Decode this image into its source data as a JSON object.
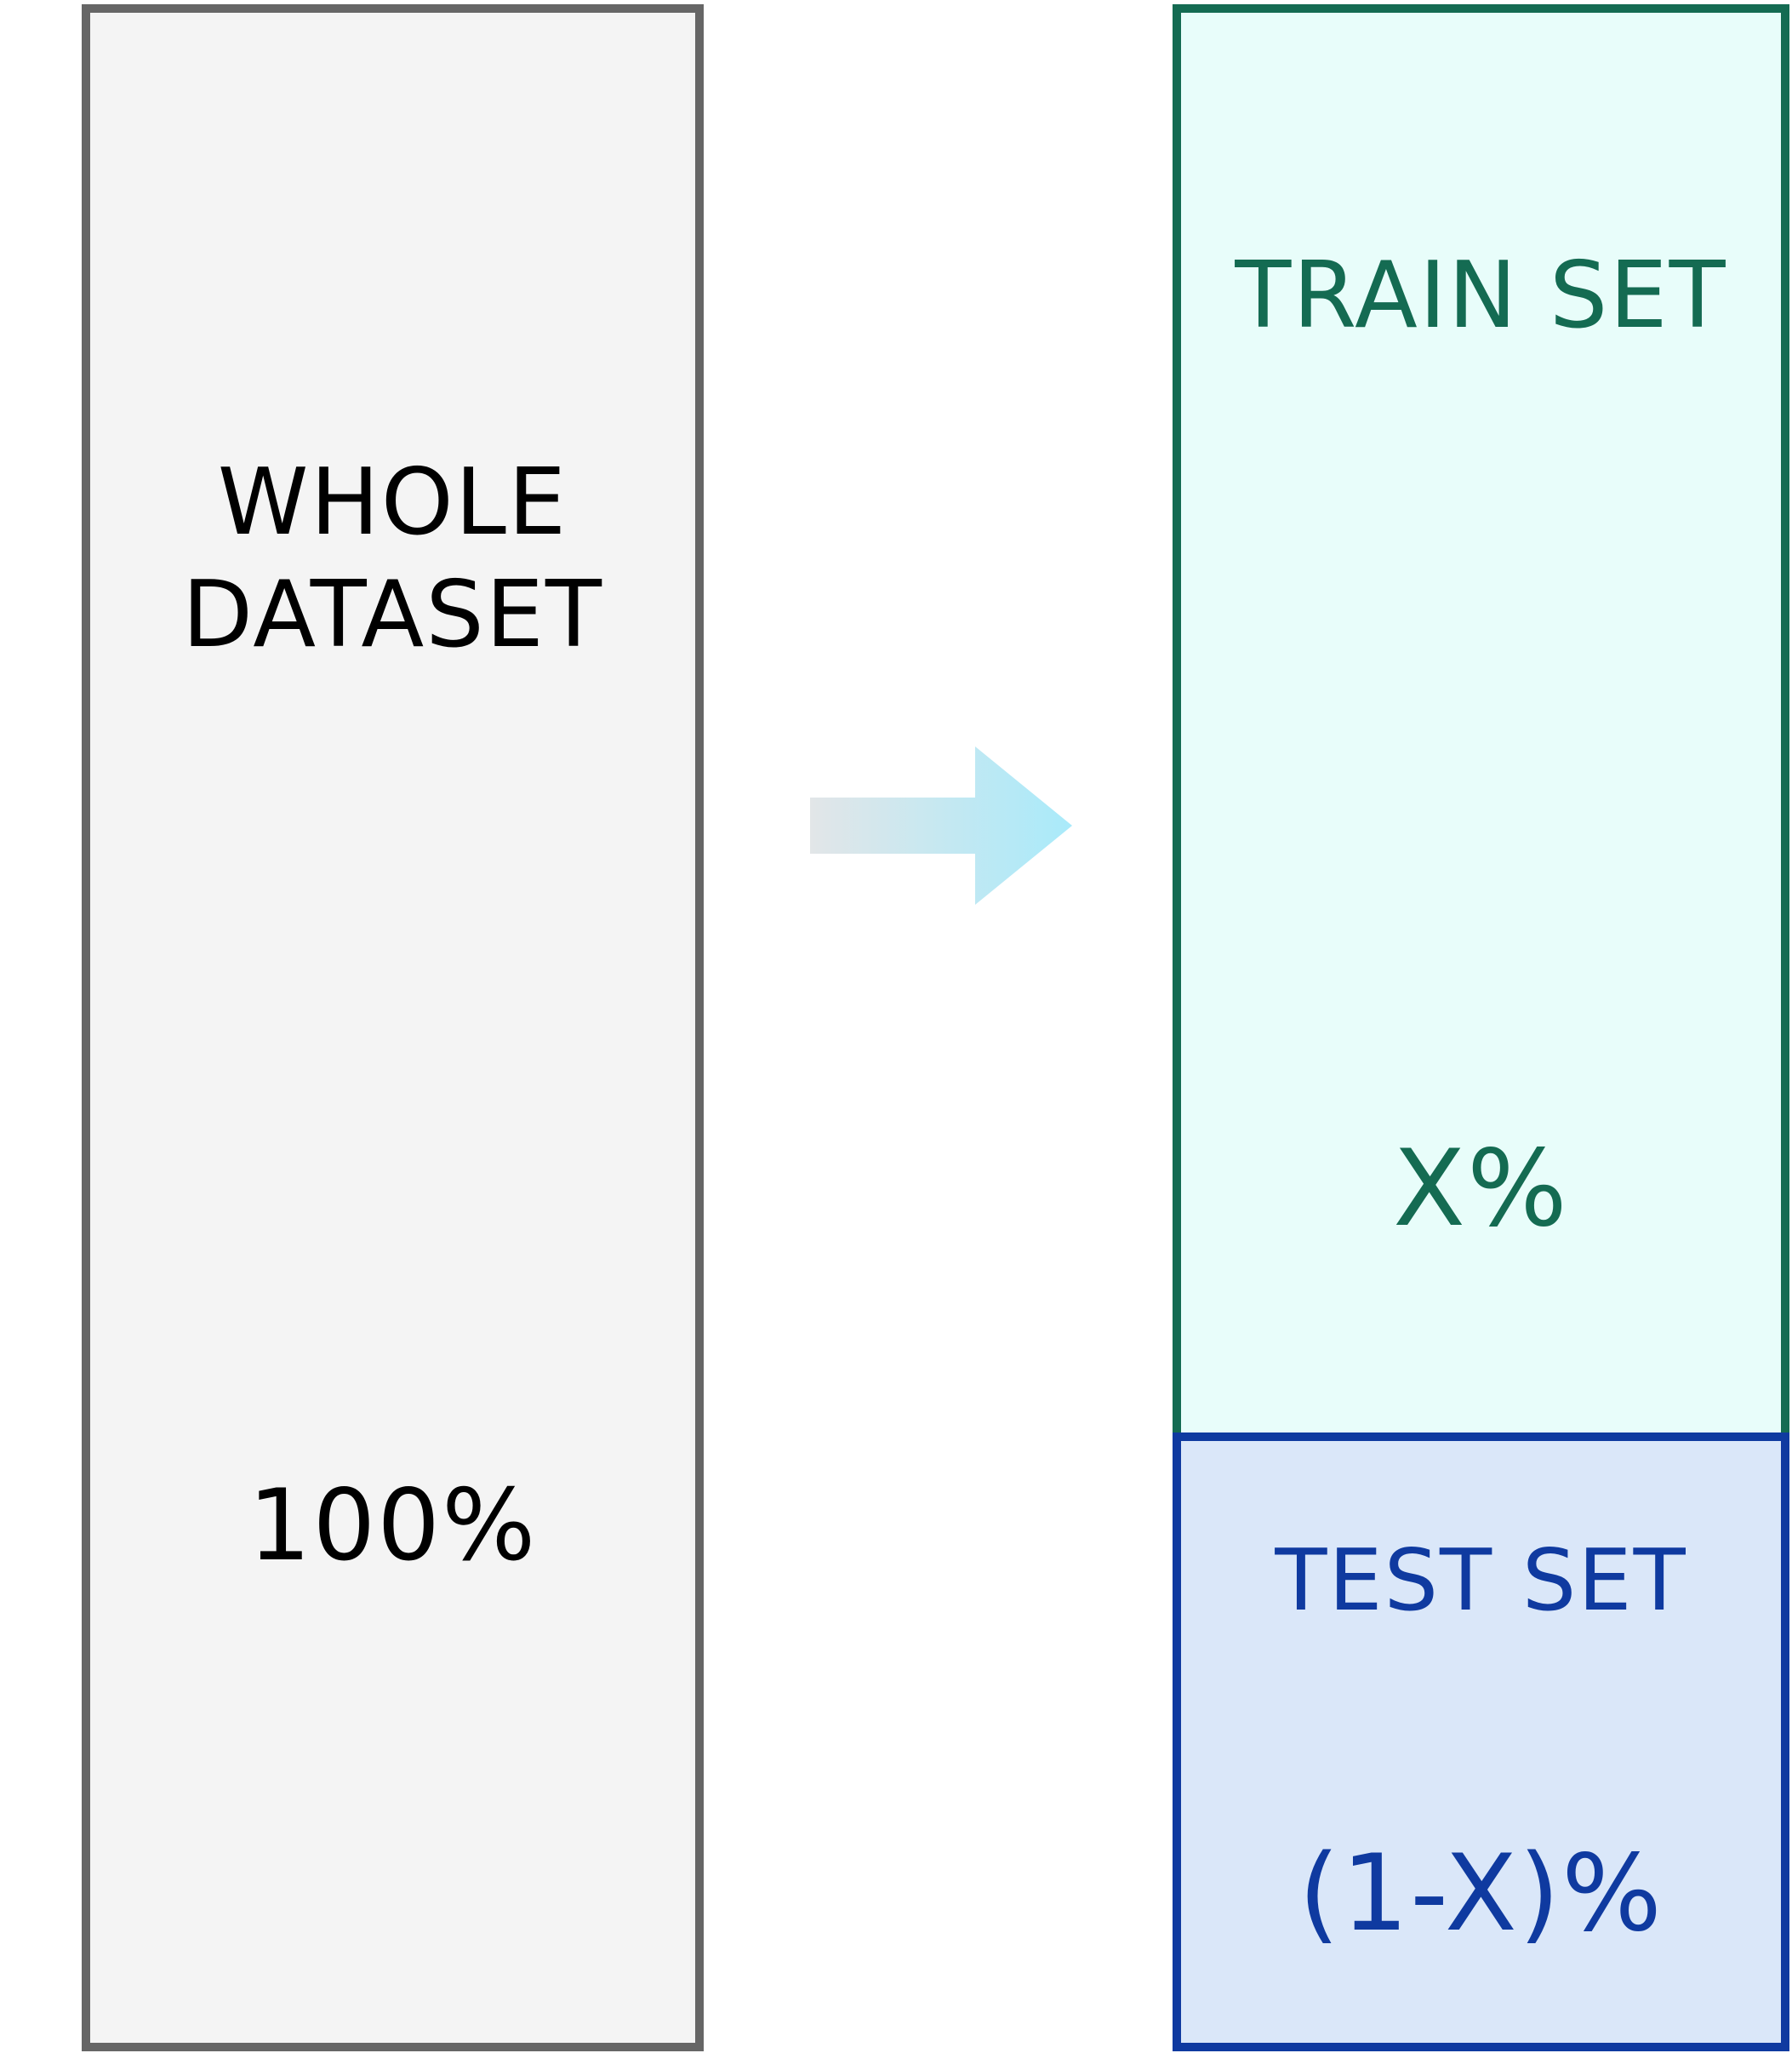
{
  "diagram": {
    "whole": {
      "title": "WHOLE\nDATASET",
      "value": "100%"
    },
    "train": {
      "title": "TRAIN SET",
      "value": "X%"
    },
    "test": {
      "title": "TEST SET",
      "value": "(1-X)%"
    },
    "colors": {
      "whole_fill": "#f4f4f4",
      "whole_stroke": "#666666",
      "whole_text": "#000000",
      "train_fill": "#e8fdfa",
      "train_stroke": "#146b52",
      "train_text": "#146b52",
      "test_fill": "#dae7f9",
      "test_stroke": "#0f3aa0",
      "test_text": "#0f3aa0",
      "arrow_start": "#e2e6e8",
      "arrow_end": "#a9eafa"
    },
    "arrow_icon": "right-arrow-icon"
  }
}
